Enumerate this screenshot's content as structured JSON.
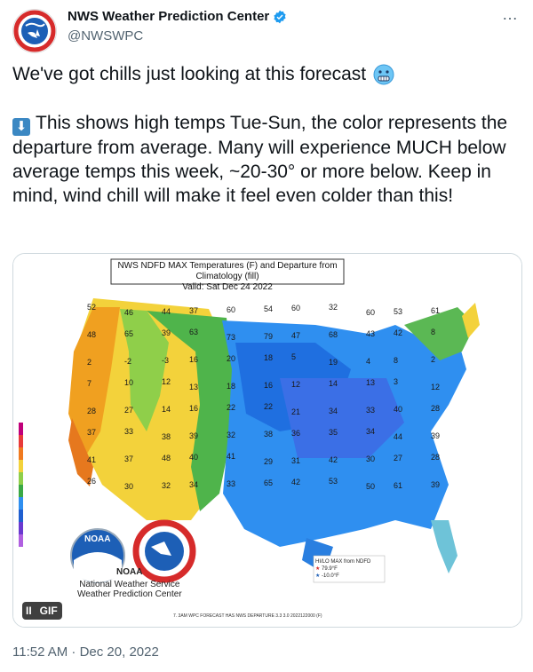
{
  "tweet": {
    "author_name": "NWS Weather Prediction Center",
    "author_handle": "@NWSWPC",
    "more_icon": "…",
    "text_line1": "We've got chills just looking at this forecast",
    "text_line1_emoji": "cold-face-emoji",
    "text_para2": "This shows high temps Tue-Sun, the color represents the departure from average. Many will experience MUCH below average temps this week, ~20-30° or more below. Keep in mind, wind chill will make it feel even colder than this!",
    "text_para2_icon": "down-arrow-emoji",
    "timestamp": "11:52 AM · Dec 20, 2022"
  },
  "media": {
    "map_title": "NWS NDFD MAX Temperatures (F) and Departure from Climatology (fill)",
    "map_valid": "Valid: Sat Dec 24 2022",
    "gif_pause": "II",
    "gif_label": "GIF",
    "noaa_logo_text": "NOAA",
    "noaa_caption": "NOAA",
    "agency_line1": "National Weather Service",
    "agency_line2": "Weather Prediction Center",
    "legend_box_title": "HI/LO MAX from NDFD",
    "legend_box_hi": "79.9°F",
    "legend_box_lo": "-10.0°F",
    "footnote": "7. 3AM WPC FORECAST HAS NWS DEPARTURE 3.3 3.0 2022122000 (F)",
    "temperature_labels": [
      "52",
      "46",
      "44",
      "37",
      "60",
      "54",
      "60",
      "32",
      "60",
      "53",
      "61",
      "48",
      "65",
      "39",
      "63",
      "73",
      "79",
      "47",
      "68",
      "43",
      "42",
      "8",
      "2",
      "-2",
      "-3",
      "16",
      "20",
      "18",
      "5",
      "19",
      "4",
      "8",
      "2",
      "7",
      "10",
      "12",
      "13",
      "18",
      "16",
      "12",
      "14",
      "13",
      "3",
      "12",
      "28",
      "27",
      "14",
      "16",
      "22",
      "22",
      "21",
      "34",
      "33",
      "40",
      "28",
      "37",
      "33",
      "38",
      "39",
      "32",
      "38",
      "36",
      "35",
      "34",
      "44",
      "39",
      "41",
      "37",
      "48",
      "40",
      "41",
      "29",
      "31",
      "42",
      "30",
      "27",
      "28",
      "26",
      "30",
      "32",
      "34",
      "33",
      "65",
      "42",
      "53",
      "50",
      "61",
      "39"
    ]
  },
  "colors": {
    "accent": "#1d9bf0",
    "text_secondary": "#536471",
    "map_blue": "#2f8ff0",
    "map_warm_yellow": "#f3d23b",
    "map_orange": "#f0a020",
    "map_green": "#3aa845"
  }
}
